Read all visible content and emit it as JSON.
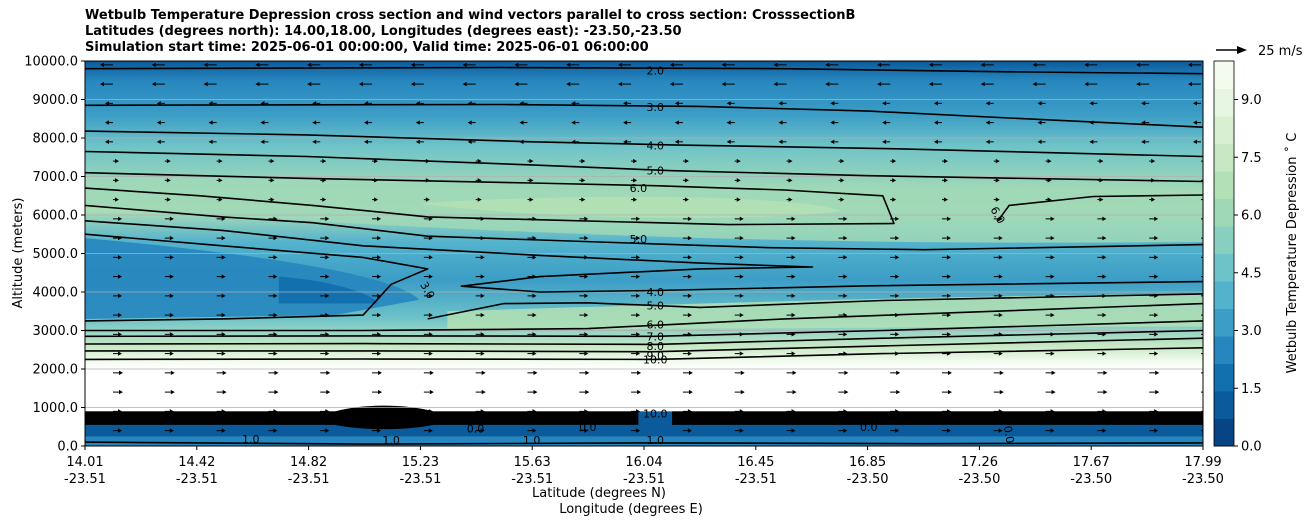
{
  "title_lines": [
    "Wetbulb Temperature Depression cross section and wind vectors parallel to cross section: CrosssectionB",
    "Latitudes (degrees north): 14.00,18.00, Longitudes (degrees east): -23.50,-23.50",
    "Simulation start time: 2025-06-01 00:00:00, Valid time: 2025-06-01 06:00:00"
  ],
  "chart_data": {
    "type": "heatmap",
    "subtype": "filled contour cross section with wind vectors",
    "ylabel": "Altitude (meters)",
    "xlabel_lines": [
      "Latitude (degrees N)",
      "Longitude (degrees E)"
    ],
    "ylim": [
      0,
      10000
    ],
    "y_ticks": [
      "0.0",
      "1000.0",
      "2000.0",
      "3000.0",
      "4000.0",
      "5000.0",
      "6000.0",
      "7000.0",
      "8000.0",
      "9000.0",
      "10000.0"
    ],
    "x_ticks": [
      {
        "lat": "14.01",
        "lon": "-23.51"
      },
      {
        "lat": "14.42",
        "lon": "-23.51"
      },
      {
        "lat": "14.82",
        "lon": "-23.51"
      },
      {
        "lat": "15.23",
        "lon": "-23.51"
      },
      {
        "lat": "15.63",
        "lon": "-23.51"
      },
      {
        "lat": "16.04",
        "lon": "-23.51"
      },
      {
        "lat": "16.45",
        "lon": "-23.51"
      },
      {
        "lat": "16.85",
        "lon": "-23.50"
      },
      {
        "lat": "17.26",
        "lon": "-23.50"
      },
      {
        "lat": "17.67",
        "lon": "-23.50"
      },
      {
        "lat": "17.99",
        "lon": "-23.50"
      }
    ],
    "grid": "horizontal",
    "colorbar": {
      "label": "Wetbulb Temperature Depression $^\\circ$C",
      "label_display": "Wetbulb Temperature Depression ˚ C",
      "range": [
        0,
        10
      ],
      "ticks": [
        "0.0",
        "1.5",
        "3.0",
        "4.5",
        "6.0",
        "7.5",
        "9.0"
      ],
      "colormap": "GnBu_r",
      "colors": [
        "#084384",
        "#0b5a9b",
        "#1170ad",
        "#2786be",
        "#3c9dc6",
        "#54b3cc",
        "#6ec3c8",
        "#88cfc0",
        "#9fd8b7",
        "#b3e0b4",
        "#c7e8c3",
        "#d8efd2",
        "#e7f6e2",
        "#f3fbef"
      ]
    },
    "quiver_key": {
      "label": "25 m/s",
      "value": 25
    },
    "contour_labels": [
      "2.0",
      "3.0",
      "4.0",
      "5.0",
      "6.0",
      "6.0",
      "5.0",
      "4.0",
      "3.0",
      "5.0",
      "6.0",
      "7.0",
      "8.0",
      "9.0",
      "10.0",
      "0.0",
      "1.0"
    ],
    "contours": [
      {
        "level": 2.0,
        "points": [
          [
            14.01,
            9800
          ],
          [
            15.5,
            9830
          ],
          [
            16.5,
            9800
          ],
          [
            17.3,
            9720
          ],
          [
            17.99,
            9670
          ]
        ]
      },
      {
        "level": 3.0,
        "points": [
          [
            14.01,
            8850
          ],
          [
            15.5,
            8870
          ],
          [
            16.2,
            8820
          ],
          [
            16.8,
            8700
          ],
          [
            17.3,
            8520
          ],
          [
            17.99,
            8280
          ]
        ]
      },
      {
        "level": 4.0,
        "points": [
          [
            14.01,
            8180
          ],
          [
            14.8,
            8080
          ],
          [
            15.6,
            7900
          ],
          [
            16.1,
            7820
          ],
          [
            16.9,
            7720
          ],
          [
            17.99,
            7520
          ]
        ]
      },
      {
        "level": 5.0,
        "points": [
          [
            14.01,
            7650
          ],
          [
            14.8,
            7520
          ],
          [
            15.6,
            7300
          ],
          [
            16.1,
            7150
          ],
          [
            16.8,
            7020
          ],
          [
            17.99,
            6870
          ]
        ]
      },
      {
        "level": 6.0,
        "points": [
          [
            14.01,
            7100
          ],
          [
            14.8,
            6950
          ],
          [
            15.6,
            6830
          ],
          [
            16.04,
            6760
          ],
          [
            16.5,
            6650
          ],
          [
            16.85,
            6500
          ],
          [
            16.89,
            5780
          ],
          [
            16.3,
            5750
          ],
          [
            15.6,
            5880
          ],
          [
            15.23,
            5950
          ],
          [
            14.82,
            6250
          ],
          [
            14.42,
            6500
          ],
          [
            14.01,
            6700
          ]
        ]
      },
      {
        "level": 6.0,
        "points": [
          [
            17.26,
            5850
          ],
          [
            17.3,
            6250
          ],
          [
            17.6,
            6480
          ],
          [
            17.99,
            6520
          ]
        ]
      },
      {
        "level": 5.0,
        "points": [
          [
            14.01,
            6250
          ],
          [
            14.5,
            5950
          ],
          [
            14.82,
            5800
          ],
          [
            15.23,
            5450
          ],
          [
            15.63,
            5350
          ],
          [
            16.04,
            5250
          ],
          [
            16.45,
            5150
          ],
          [
            17.0,
            5100
          ],
          [
            17.99,
            5230
          ]
        ]
      },
      {
        "level": 4.0,
        "points": [
          [
            14.01,
            5850
          ],
          [
            14.5,
            5600
          ],
          [
            15.0,
            5200
          ],
          [
            15.63,
            4950
          ],
          [
            16.2,
            4750
          ],
          [
            16.6,
            4650
          ],
          [
            16.2,
            4600
          ],
          [
            15.63,
            4400
          ],
          [
            15.35,
            4150
          ],
          [
            15.63,
            4000
          ],
          [
            16.04,
            4040
          ],
          [
            16.8,
            4160
          ],
          [
            17.99,
            4270
          ]
        ]
      },
      {
        "level": 3.0,
        "points": [
          [
            14.01,
            5500
          ],
          [
            14.5,
            5200
          ],
          [
            15.0,
            4900
          ],
          [
            15.23,
            4600
          ],
          [
            15.1,
            4200
          ],
          [
            15.0,
            3400
          ],
          [
            14.5,
            3300
          ],
          [
            14.01,
            3250
          ]
        ]
      },
      {
        "level": 5.0,
        "points": [
          [
            15.23,
            3300
          ],
          [
            15.5,
            3700
          ],
          [
            15.8,
            3720
          ],
          [
            16.2,
            3600
          ],
          [
            16.85,
            3780
          ],
          [
            17.99,
            3950
          ]
        ]
      },
      {
        "level": 6.0,
        "points": [
          [
            14.01,
            3000
          ],
          [
            15.0,
            3000
          ],
          [
            15.8,
            3050
          ],
          [
            16.5,
            3300
          ],
          [
            17.99,
            3700
          ]
        ]
      },
      {
        "level": 7.0,
        "points": [
          [
            14.01,
            2850
          ],
          [
            15.0,
            2860
          ],
          [
            16.04,
            2850
          ],
          [
            16.85,
            3000
          ],
          [
            17.99,
            3250
          ]
        ]
      },
      {
        "level": 8.0,
        "points": [
          [
            14.01,
            2650
          ],
          [
            15.0,
            2660
          ],
          [
            16.04,
            2640
          ],
          [
            16.85,
            2800
          ],
          [
            17.99,
            3000
          ]
        ]
      },
      {
        "level": 9.0,
        "points": [
          [
            14.01,
            2470
          ],
          [
            15.0,
            2470
          ],
          [
            16.04,
            2450
          ],
          [
            16.85,
            2600
          ],
          [
            17.99,
            2800
          ]
        ]
      },
      {
        "level": 10.0,
        "points": [
          [
            14.01,
            2250
          ],
          [
            15.0,
            2260
          ],
          [
            16.04,
            2250
          ],
          [
            16.85,
            2400
          ],
          [
            17.99,
            2550
          ]
        ]
      },
      {
        "level": 1.0,
        "points": [
          [
            14.01,
            100
          ],
          [
            15.0,
            50
          ],
          [
            16.04,
            80
          ],
          [
            17.0,
            60
          ],
          [
            17.99,
            80
          ]
        ]
      }
    ],
    "contour_labels_placed": [
      {
        "text": "2.0",
        "lat": 16.04,
        "alt": 9750
      },
      {
        "text": "3.0",
        "lat": 16.04,
        "alt": 8800
      },
      {
        "text": "4.0",
        "lat": 16.04,
        "alt": 7800
      },
      {
        "text": "5.0",
        "lat": 16.04,
        "alt": 7150
      },
      {
        "text": "6.0",
        "lat": 15.98,
        "alt": 6700
      },
      {
        "text": "6.0",
        "lat": 17.26,
        "alt": 6000,
        "rotate": 60
      },
      {
        "text": "5.0",
        "lat": 15.98,
        "alt": 5380
      },
      {
        "text": "4.0",
        "lat": 16.04,
        "alt": 4000
      },
      {
        "text": "3.0",
        "lat": 15.23,
        "alt": 4050,
        "rotate": 60
      },
      {
        "text": "5.0",
        "lat": 16.04,
        "alt": 3650
      },
      {
        "text": "6.0",
        "lat": 16.04,
        "alt": 3150
      },
      {
        "text": "7.0",
        "lat": 16.04,
        "alt": 2850
      },
      {
        "text": "8.0",
        "lat": 16.04,
        "alt": 2600
      },
      {
        "text": "9.0",
        "lat": 16.04,
        "alt": 2350
      },
      {
        "text": "10.0",
        "lat": 16.04,
        "alt": 2250
      },
      {
        "text": "0.0",
        "lat": 15.4,
        "alt": 450
      },
      {
        "text": "0.0",
        "lat": 15.8,
        "alt": 500
      },
      {
        "text": "0.0",
        "lat": 16.8,
        "alt": 500
      },
      {
        "text": "0.0",
        "lat": 17.3,
        "alt": 300,
        "rotate": 80
      },
      {
        "text": "1.0",
        "lat": 14.6,
        "alt": 180
      },
      {
        "text": "1.0",
        "lat": 15.1,
        "alt": 150
      },
      {
        "text": "1.0",
        "lat": 15.6,
        "alt": 150
      },
      {
        "text": "1.0",
        "lat": 16.04,
        "alt": 150
      },
      {
        "text": "10.0",
        "lat": 16.04,
        "alt": 850
      }
    ]
  }
}
